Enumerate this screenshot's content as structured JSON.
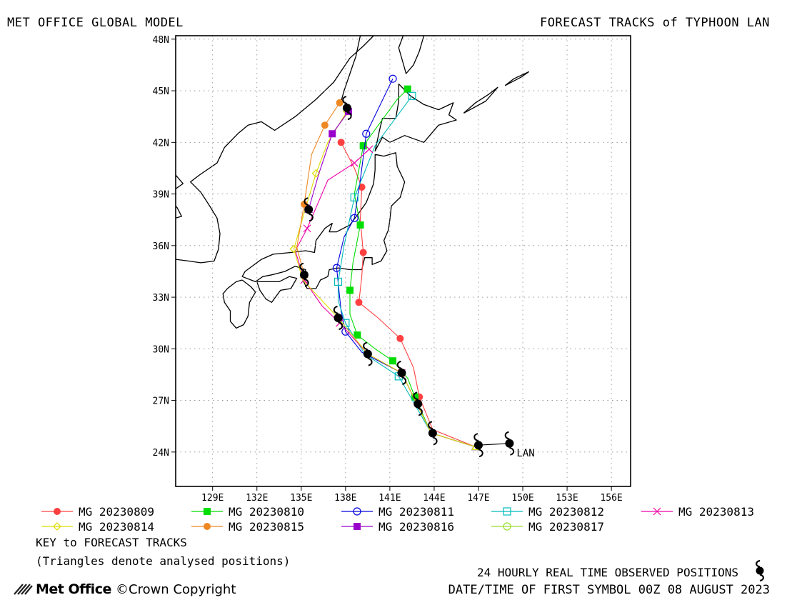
{
  "header": {
    "left_title": "MET OFFICE GLOBAL MODEL",
    "right_title": "FORECAST TRACKS of TYPHOON LAN"
  },
  "chart_data": {
    "type": "line",
    "title": "FORECAST TRACKS of TYPHOON LAN",
    "xlim": [
      126.5,
      157.3
    ],
    "ylim": [
      22.0,
      48.2
    ],
    "x_ticks": [
      129,
      132,
      135,
      138,
      141,
      144,
      147,
      150,
      153,
      156
    ],
    "x_tick_labels": [
      "129E",
      "132E",
      "135E",
      "138E",
      "141E",
      "144E",
      "147E",
      "150E",
      "153E",
      "156E"
    ],
    "y_ticks": [
      24,
      27,
      30,
      33,
      36,
      39,
      42,
      45,
      48
    ],
    "y_tick_labels": [
      "24N",
      "27N",
      "30N",
      "33N",
      "36N",
      "39N",
      "42N",
      "45N",
      "48N"
    ],
    "grid": true,
    "storm_label": "LAN",
    "observed_track": [
      [
        149.1,
        24.5
      ],
      [
        147.0,
        24.4
      ],
      [
        143.9,
        25.1
      ],
      [
        142.9,
        26.8
      ],
      [
        141.8,
        28.6
      ],
      [
        139.5,
        29.7
      ],
      [
        137.5,
        31.8
      ],
      [
        135.2,
        34.3
      ],
      [
        135.5,
        38.1
      ],
      [
        138.1,
        44.0
      ]
    ],
    "series": [
      {
        "name": "MG 20230809",
        "color": "#ff4040",
        "marker": "filled-circle",
        "points": [
          [
            146.8,
            24.3
          ],
          [
            143.9,
            25.3
          ],
          [
            143.0,
            27.2
          ],
          [
            142.6,
            28.9
          ],
          [
            141.7,
            30.6
          ],
          [
            140.2,
            31.8
          ],
          [
            138.9,
            32.7
          ],
          [
            139.1,
            34.2
          ],
          [
            139.2,
            35.6
          ],
          [
            139.0,
            37.5
          ],
          [
            139.1,
            39.4
          ],
          [
            138.6,
            40.5
          ],
          [
            137.7,
            42.0
          ]
        ]
      },
      {
        "name": "MG 20230810",
        "color": "#00dd00",
        "marker": "filled-square",
        "points": [
          [
            146.8,
            24.3
          ],
          [
            143.8,
            25.1
          ],
          [
            142.7,
            27.2
          ],
          [
            142.2,
            28.3
          ],
          [
            141.2,
            29.3
          ],
          [
            140.0,
            30.0
          ],
          [
            138.8,
            30.8
          ],
          [
            138.3,
            32.0
          ],
          [
            138.3,
            33.4
          ],
          [
            138.5,
            35.0
          ],
          [
            139.0,
            37.2
          ],
          [
            138.6,
            39.0
          ],
          [
            139.2,
            41.8
          ],
          [
            141.5,
            44.5
          ],
          [
            142.2,
            45.1
          ]
        ]
      },
      {
        "name": "MG 20230811",
        "color": "#0000dd",
        "marker": "open-circle",
        "points": [
          [
            146.8,
            24.3
          ],
          [
            143.8,
            25.1
          ],
          [
            141.8,
            28.6
          ],
          [
            139.1,
            29.8
          ],
          [
            138.0,
            31.0
          ],
          [
            137.7,
            32.2
          ],
          [
            137.4,
            34.7
          ],
          [
            137.9,
            36.5
          ],
          [
            138.6,
            37.6
          ],
          [
            139.0,
            39.8
          ],
          [
            139.4,
            42.5
          ],
          [
            141.2,
            45.7
          ]
        ]
      },
      {
        "name": "MG 20230812",
        "color": "#00bbbb",
        "marker": "open-square",
        "points": [
          [
            146.8,
            24.3
          ],
          [
            143.8,
            25.1
          ],
          [
            141.6,
            28.4
          ],
          [
            139.3,
            29.7
          ],
          [
            138.0,
            31.5
          ],
          [
            137.5,
            32.8
          ],
          [
            137.5,
            33.9
          ],
          [
            137.9,
            36.0
          ],
          [
            138.6,
            38.8
          ],
          [
            140.0,
            41.8
          ],
          [
            142.5,
            44.7
          ]
        ]
      },
      {
        "name": "MG 20230813",
        "color": "#ee00aa",
        "marker": "cross",
        "points": [
          [
            146.8,
            24.3
          ],
          [
            143.8,
            25.1
          ],
          [
            141.8,
            28.6
          ],
          [
            139.5,
            29.7
          ],
          [
            137.6,
            31.5
          ],
          [
            136.4,
            32.5
          ],
          [
            135.2,
            34.0
          ],
          [
            134.6,
            35.7
          ],
          [
            135.4,
            37.0
          ],
          [
            136.8,
            39.8
          ],
          [
            138.6,
            40.8
          ],
          [
            139.6,
            41.6
          ]
        ]
      },
      {
        "name": "MG 20230814",
        "color": "#dddd00",
        "marker": "open-diamond",
        "points": [
          [
            146.8,
            24.3
          ],
          [
            143.8,
            25.1
          ],
          [
            141.8,
            28.6
          ],
          [
            139.5,
            29.7
          ],
          [
            137.5,
            31.8
          ],
          [
            135.1,
            34.0
          ],
          [
            134.5,
            35.8
          ],
          [
            135.3,
            38.2
          ],
          [
            136.0,
            40.2
          ],
          [
            136.8,
            42.0
          ],
          [
            138.1,
            43.8
          ]
        ]
      },
      {
        "name": "MG 20230815",
        "color": "#ee8822",
        "marker": "filled-circle",
        "points": [
          [
            135.2,
            34.3
          ],
          [
            134.7,
            35.9
          ],
          [
            135.2,
            38.4
          ],
          [
            135.7,
            41.3
          ],
          [
            136.6,
            43.0
          ],
          [
            137.6,
            44.3
          ]
        ]
      },
      {
        "name": "MG 20230816",
        "color": "#9900cc",
        "marker": "filled-square",
        "points": [
          [
            135.5,
            38.1
          ],
          [
            136.2,
            40.2
          ],
          [
            137.1,
            42.5
          ],
          [
            138.2,
            43.8
          ]
        ]
      },
      {
        "name": "MG 20230817",
        "color": "#99dd33",
        "marker": "open-circle",
        "points": [
          [
            138.1,
            44.0
          ]
        ]
      }
    ],
    "legend_position": "bottom"
  },
  "footer": {
    "key_title": "KEY to FORECAST TRACKS",
    "key_note": "(Triangles denote analysed positions)",
    "observed_label": "24 HOURLY REAL TIME OBSERVED POSITIONS",
    "datetime": "DATE/TIME OF FIRST SYMBOL 00Z 08 AUGUST 2023",
    "logo": "Met Office",
    "copyright": "©Crown Copyright"
  }
}
